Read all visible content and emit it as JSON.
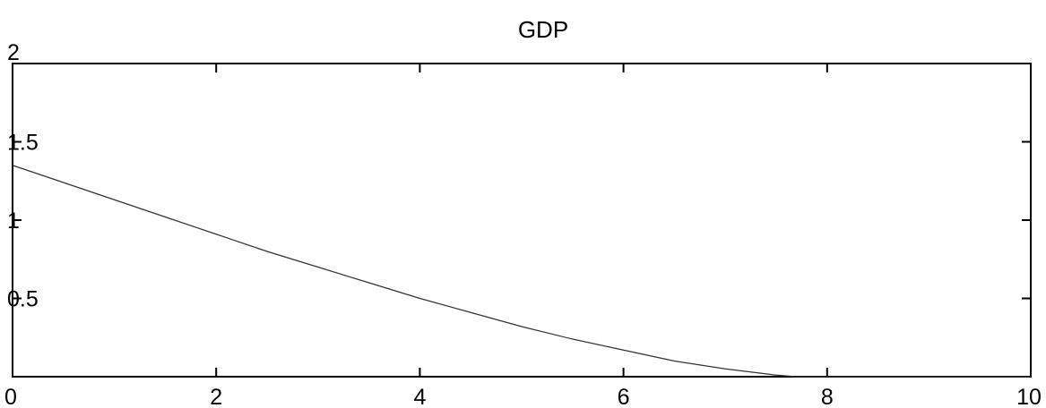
{
  "chart_data": {
    "type": "line",
    "title": "GDP",
    "xlabel": "",
    "ylabel": "",
    "xlim": [
      0,
      10
    ],
    "ylim": [
      0,
      2
    ],
    "grid": false,
    "x_ticks": [
      {
        "value": 0,
        "label": "0"
      },
      {
        "value": 2,
        "label": "2"
      },
      {
        "value": 4,
        "label": "4"
      },
      {
        "value": 6,
        "label": "6"
      },
      {
        "value": 8,
        "label": "8"
      },
      {
        "value": 10,
        "label": "10"
      }
    ],
    "y_ticks": [
      {
        "value": 0.5,
        "label": "0.5"
      },
      {
        "value": 1,
        "label": "1"
      },
      {
        "value": 1.5,
        "label": "1.5"
      },
      {
        "value": 2,
        "label": "2"
      }
    ],
    "series": [
      {
        "color": "#333333",
        "x": [
          0,
          0.5,
          1,
          1.5,
          2,
          2.5,
          3,
          3.5,
          4,
          4.5,
          5,
          5.5,
          6,
          6.5,
          7,
          7.5,
          7.7,
          8,
          8.5,
          9,
          9.5,
          10
        ],
        "y": [
          1.35,
          1.24,
          1.13,
          1.02,
          0.91,
          0.8,
          0.7,
          0.6,
          0.5,
          0.41,
          0.32,
          0.24,
          0.17,
          0.1,
          0.05,
          0.01,
          0.0,
          0.0,
          0.0,
          0.0,
          0.0,
          0.0
        ]
      }
    ]
  }
}
